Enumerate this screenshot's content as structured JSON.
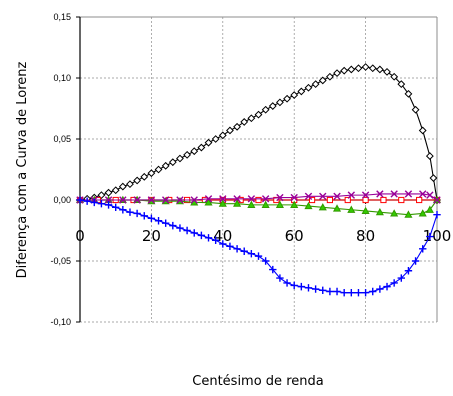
{
  "chart_data": {
    "type": "line",
    "title": "",
    "xlabel": "Centésimo de renda",
    "ylabel": "Diferença com a Curva de Lorenz",
    "xlim": [
      0,
      100
    ],
    "ylim": [
      -0.1,
      0.15
    ],
    "x_ticks": [
      "0",
      "20",
      "40",
      "60",
      "80",
      "100"
    ],
    "y_ticks": [
      "-0,10",
      "-0,05",
      "0,00",
      "0,05",
      "0,10",
      "0,15"
    ],
    "grid": true,
    "series": [
      {
        "color": "#000000",
        "marker": "diamond",
        "x": [
          0,
          2,
          4,
          6,
          8,
          10,
          12,
          14,
          16,
          18,
          20,
          22,
          24,
          26,
          28,
          30,
          32,
          34,
          36,
          38,
          40,
          42,
          44,
          46,
          48,
          50,
          52,
          54,
          56,
          58,
          60,
          62,
          64,
          66,
          68,
          70,
          72,
          74,
          76,
          78,
          80,
          82,
          84,
          86,
          88,
          90,
          92,
          94,
          96,
          98,
          99,
          100
        ],
        "y": [
          0.0,
          0.001,
          0.002,
          0.004,
          0.006,
          0.008,
          0.011,
          0.013,
          0.016,
          0.019,
          0.022,
          0.025,
          0.028,
          0.031,
          0.034,
          0.037,
          0.04,
          0.043,
          0.047,
          0.05,
          0.053,
          0.057,
          0.06,
          0.064,
          0.067,
          0.07,
          0.074,
          0.077,
          0.08,
          0.083,
          0.086,
          0.089,
          0.092,
          0.095,
          0.098,
          0.101,
          0.104,
          0.106,
          0.107,
          0.108,
          0.109,
          0.108,
          0.107,
          0.105,
          0.101,
          0.095,
          0.087,
          0.074,
          0.057,
          0.036,
          0.018,
          0.0
        ]
      },
      {
        "color": "#ff0000",
        "marker": "square",
        "x": [
          0,
          5,
          10,
          15,
          20,
          25,
          30,
          35,
          40,
          45,
          50,
          55,
          60,
          65,
          70,
          75,
          80,
          85,
          90,
          95,
          100
        ],
        "y": [
          0.0,
          0.0,
          0.0,
          0.0,
          0.0,
          0.0,
          0.0,
          0.0,
          0.0,
          0.0,
          0.0,
          0.0,
          0.0,
          0.0,
          0.0,
          0.0,
          0.0,
          0.0,
          0.0,
          0.0,
          0.0
        ]
      },
      {
        "color": "#339900",
        "marker": "triangle",
        "x": [
          0,
          4,
          8,
          12,
          16,
          20,
          24,
          28,
          32,
          36,
          40,
          44,
          48,
          52,
          56,
          60,
          64,
          68,
          72,
          76,
          80,
          84,
          88,
          92,
          96,
          98,
          100
        ],
        "y": [
          0.0,
          0.0,
          0.0,
          0.0,
          0.0,
          -0.001,
          -0.001,
          -0.001,
          -0.002,
          -0.002,
          -0.003,
          -0.003,
          -0.004,
          -0.004,
          -0.004,
          -0.004,
          -0.005,
          -0.006,
          -0.007,
          -0.008,
          -0.009,
          -0.01,
          -0.011,
          -0.012,
          -0.011,
          -0.008,
          0.0
        ]
      },
      {
        "color": "#990099",
        "marker": "cross",
        "x": [
          0,
          4,
          8,
          12,
          16,
          20,
          24,
          28,
          32,
          36,
          40,
          44,
          48,
          52,
          56,
          60,
          64,
          68,
          72,
          76,
          80,
          84,
          88,
          92,
          96,
          98,
          100
        ],
        "y": [
          0.0,
          0.0,
          0.0,
          0.0,
          0.0,
          0.0,
          0.0,
          0.0,
          0.0,
          0.001,
          0.001,
          0.001,
          0.001,
          0.001,
          0.002,
          0.002,
          0.003,
          0.003,
          0.003,
          0.004,
          0.004,
          0.005,
          0.005,
          0.005,
          0.005,
          0.004,
          0.0
        ]
      },
      {
        "color": "#0000ff",
        "marker": "plus",
        "x": [
          0,
          2,
          4,
          6,
          8,
          10,
          12,
          14,
          16,
          18,
          20,
          22,
          24,
          26,
          28,
          30,
          32,
          34,
          36,
          38,
          40,
          42,
          44,
          46,
          48,
          50,
          52,
          54,
          56,
          58,
          60,
          62,
          64,
          66,
          68,
          70,
          72,
          74,
          76,
          78,
          80,
          82,
          84,
          86,
          88,
          90,
          92,
          94,
          96,
          98,
          100
        ],
        "y": [
          0.0,
          -0.001,
          -0.002,
          -0.003,
          -0.004,
          -0.006,
          -0.008,
          -0.01,
          -0.011,
          -0.013,
          -0.015,
          -0.017,
          -0.019,
          -0.021,
          -0.023,
          -0.025,
          -0.027,
          -0.029,
          -0.031,
          -0.033,
          -0.036,
          -0.038,
          -0.04,
          -0.042,
          -0.044,
          -0.046,
          -0.05,
          -0.057,
          -0.064,
          -0.068,
          -0.07,
          -0.071,
          -0.072,
          -0.073,
          -0.074,
          -0.075,
          -0.075,
          -0.076,
          -0.076,
          -0.076,
          -0.076,
          -0.075,
          -0.073,
          -0.071,
          -0.068,
          -0.064,
          -0.058,
          -0.05,
          -0.04,
          -0.03,
          -0.012
        ]
      }
    ]
  }
}
